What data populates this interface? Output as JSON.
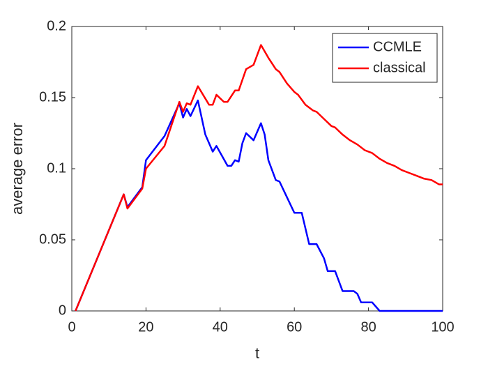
{
  "chart_data": {
    "type": "line",
    "xlabel": "t",
    "ylabel": "average error",
    "xlim": [
      0,
      100
    ],
    "ylim": [
      0,
      0.2
    ],
    "xticks": [
      0,
      20,
      40,
      60,
      80,
      100
    ],
    "yticks": [
      0,
      0.05,
      0.1,
      0.15,
      0.2
    ],
    "legend": "upper right",
    "series": [
      {
        "name": "CCMLE",
        "color": "#0000ff",
        "x": [
          1,
          14,
          15,
          19,
          20,
          25,
          29,
          30,
          31,
          32,
          34,
          36,
          38,
          39,
          42,
          43,
          44,
          45,
          46,
          47,
          49,
          51,
          52,
          53,
          55,
          56,
          58,
          60,
          62,
          64,
          66,
          68,
          69,
          71,
          73,
          76,
          77,
          78,
          81,
          83,
          100
        ],
        "values": [
          0,
          0.082,
          0.073,
          0.087,
          0.106,
          0.123,
          0.146,
          0.136,
          0.142,
          0.137,
          0.148,
          0.124,
          0.112,
          0.116,
          0.102,
          0.102,
          0.106,
          0.105,
          0.118,
          0.125,
          0.12,
          0.132,
          0.124,
          0.106,
          0.092,
          0.091,
          0.08,
          0.069,
          0.069,
          0.047,
          0.047,
          0.037,
          0.028,
          0.028,
          0.014,
          0.014,
          0.012,
          0.006,
          0.006,
          0,
          0
        ]
      },
      {
        "name": "classical",
        "color": "#ff0000",
        "x": [
          1,
          14,
          15,
          19,
          20,
          25,
          29,
          30,
          31,
          32,
          34,
          37,
          38,
          39,
          41,
          42,
          44,
          45,
          47,
          49,
          51,
          53,
          55,
          56,
          58,
          60,
          61,
          63,
          65,
          66,
          68,
          70,
          71,
          73,
          75,
          77,
          79,
          81,
          83,
          85,
          87,
          89,
          91,
          93,
          95,
          97,
          99,
          100
        ],
        "values": [
          0,
          0.082,
          0.072,
          0.086,
          0.1,
          0.116,
          0.147,
          0.14,
          0.146,
          0.145,
          0.158,
          0.145,
          0.145,
          0.152,
          0.147,
          0.147,
          0.155,
          0.155,
          0.17,
          0.173,
          0.187,
          0.178,
          0.17,
          0.168,
          0.16,
          0.154,
          0.152,
          0.145,
          0.141,
          0.14,
          0.135,
          0.13,
          0.129,
          0.124,
          0.12,
          0.117,
          0.113,
          0.111,
          0.107,
          0.104,
          0.102,
          0.099,
          0.097,
          0.095,
          0.093,
          0.092,
          0.089,
          0.089
        ]
      }
    ]
  }
}
